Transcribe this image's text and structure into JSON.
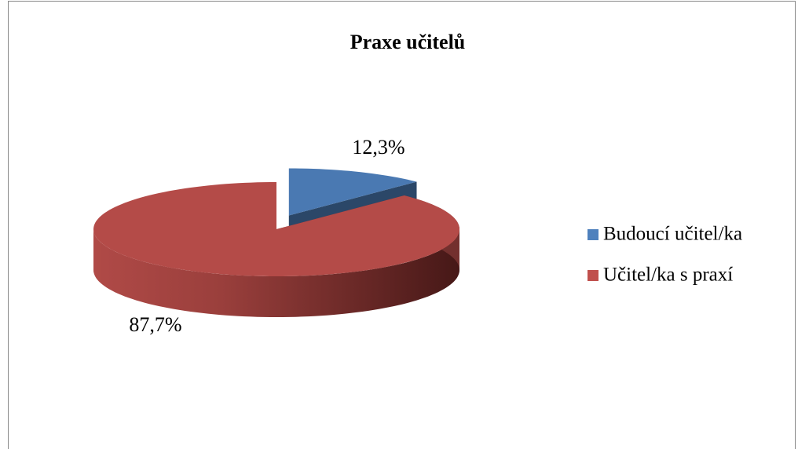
{
  "chart_data": {
    "type": "pie",
    "title": "Praxe učitelů",
    "categories": [
      "Budoucí učitel/ka",
      "Učitel/ka s praxí"
    ],
    "values": [
      12.3,
      87.7
    ],
    "value_labels": [
      "12,3%",
      "87,7%"
    ],
    "colors": [
      "#4f81bd",
      "#c0504d"
    ],
    "legend": "right"
  }
}
